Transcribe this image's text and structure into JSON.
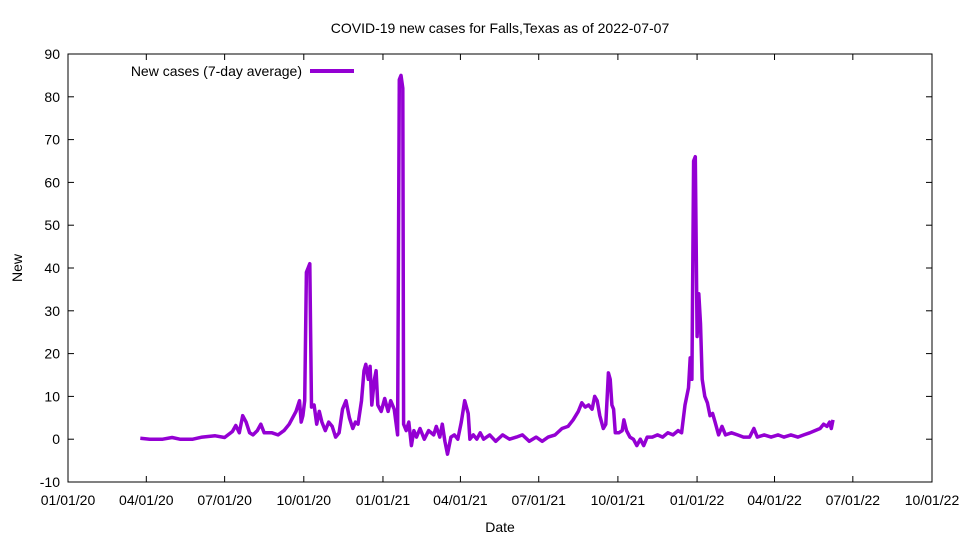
{
  "chart_data": {
    "type": "line",
    "title": "COVID-19 new cases for Falls,Texas as of 2022-07-07",
    "xlabel": "Date",
    "ylabel": "New",
    "x_start": "2020-01-01",
    "x_end": "2022-10-01",
    "ylim": [
      -10,
      90
    ],
    "yticks": [
      -10,
      0,
      10,
      20,
      30,
      40,
      50,
      60,
      70,
      80,
      90
    ],
    "xticks": [
      {
        "date": "2020-01-01",
        "label": "01/01/20"
      },
      {
        "date": "2020-04-01",
        "label": "04/01/20"
      },
      {
        "date": "2020-07-01",
        "label": "07/01/20"
      },
      {
        "date": "2020-10-01",
        "label": "10/01/20"
      },
      {
        "date": "2021-01-01",
        "label": "01/01/21"
      },
      {
        "date": "2021-04-01",
        "label": "04/01/21"
      },
      {
        "date": "2021-07-01",
        "label": "07/01/21"
      },
      {
        "date": "2021-10-01",
        "label": "10/01/21"
      },
      {
        "date": "2022-01-01",
        "label": "01/01/22"
      },
      {
        "date": "2022-04-01",
        "label": "04/01/22"
      },
      {
        "date": "2022-07-01",
        "label": "07/01/22"
      },
      {
        "date": "2022-10-01",
        "label": "10/01/22"
      }
    ],
    "legend_position": "top-left",
    "grid": false,
    "series": [
      {
        "name": "New cases (7-day average)",
        "color": "#9400d3",
        "points": [
          [
            "2020-03-25",
            0.2
          ],
          [
            "2020-04-05",
            0
          ],
          [
            "2020-04-20",
            0
          ],
          [
            "2020-05-01",
            0.4
          ],
          [
            "2020-05-10",
            0
          ],
          [
            "2020-05-25",
            0
          ],
          [
            "2020-06-05",
            0.5
          ],
          [
            "2020-06-20",
            0.8
          ],
          [
            "2020-07-01",
            0.4
          ],
          [
            "2020-07-10",
            1.8
          ],
          [
            "2020-07-14",
            3.2
          ],
          [
            "2020-07-18",
            1.5
          ],
          [
            "2020-07-22",
            5.5
          ],
          [
            "2020-07-26",
            4.0
          ],
          [
            "2020-07-30",
            1.5
          ],
          [
            "2020-08-03",
            1.0
          ],
          [
            "2020-08-08",
            2.0
          ],
          [
            "2020-08-12",
            3.5
          ],
          [
            "2020-08-16",
            1.5
          ],
          [
            "2020-08-25",
            1.5
          ],
          [
            "2020-09-01",
            1.0
          ],
          [
            "2020-09-08",
            2.0
          ],
          [
            "2020-09-14",
            3.5
          ],
          [
            "2020-09-18",
            5.0
          ],
          [
            "2020-09-22",
            6.5
          ],
          [
            "2020-09-26",
            9.0
          ],
          [
            "2020-09-28",
            4.0
          ],
          [
            "2020-09-30",
            5.5
          ],
          [
            "2020-10-02",
            9.0
          ],
          [
            "2020-10-04",
            39.0
          ],
          [
            "2020-10-06",
            40.0
          ],
          [
            "2020-10-08",
            41.0
          ],
          [
            "2020-10-10",
            7.5
          ],
          [
            "2020-10-13",
            8.0
          ],
          [
            "2020-10-16",
            3.5
          ],
          [
            "2020-10-19",
            6.5
          ],
          [
            "2020-10-22",
            4.0
          ],
          [
            "2020-10-26",
            2.0
          ],
          [
            "2020-10-30",
            4.0
          ],
          [
            "2020-11-03",
            3.0
          ],
          [
            "2020-11-07",
            0.5
          ],
          [
            "2020-11-11",
            1.5
          ],
          [
            "2020-11-15",
            7.0
          ],
          [
            "2020-11-19",
            9.0
          ],
          [
            "2020-11-23",
            5.0
          ],
          [
            "2020-11-27",
            2.5
          ],
          [
            "2020-11-30",
            4.0
          ],
          [
            "2020-12-03",
            3.5
          ],
          [
            "2020-12-07",
            9.0
          ],
          [
            "2020-12-10",
            16.0
          ],
          [
            "2020-12-12",
            17.5
          ],
          [
            "2020-12-15",
            14.0
          ],
          [
            "2020-12-17",
            17.0
          ],
          [
            "2020-12-19",
            8.0
          ],
          [
            "2020-12-22",
            14.0
          ],
          [
            "2020-12-24",
            16.0
          ],
          [
            "2020-12-26",
            8.0
          ],
          [
            "2020-12-30",
            6.5
          ],
          [
            "2021-01-03",
            9.5
          ],
          [
            "2021-01-07",
            6.5
          ],
          [
            "2021-01-10",
            9.0
          ],
          [
            "2021-01-14",
            7.0
          ],
          [
            "2021-01-18",
            1.0
          ],
          [
            "2021-01-20",
            84.0
          ],
          [
            "2021-01-22",
            85.0
          ],
          [
            "2021-01-24",
            82.0
          ],
          [
            "2021-01-25",
            3.5
          ],
          [
            "2021-01-28",
            2.0
          ],
          [
            "2021-01-31",
            4.0
          ],
          [
            "2021-02-03",
            -1.5
          ],
          [
            "2021-02-06",
            2.0
          ],
          [
            "2021-02-09",
            0.5
          ],
          [
            "2021-02-13",
            2.5
          ],
          [
            "2021-02-18",
            0.0
          ],
          [
            "2021-02-23",
            2.0
          ],
          [
            "2021-03-01",
            1.0
          ],
          [
            "2021-03-04",
            3.0
          ],
          [
            "2021-03-08",
            0.5
          ],
          [
            "2021-03-11",
            3.5
          ],
          [
            "2021-03-14",
            -0.5
          ],
          [
            "2021-03-17",
            -3.5
          ],
          [
            "2021-03-21",
            0.5
          ],
          [
            "2021-03-25",
            1.0
          ],
          [
            "2021-03-29",
            0.0
          ],
          [
            "2021-04-02",
            4.0
          ],
          [
            "2021-04-06",
            9.0
          ],
          [
            "2021-04-10",
            6.0
          ],
          [
            "2021-04-12",
            0.0
          ],
          [
            "2021-04-16",
            1.0
          ],
          [
            "2021-04-20",
            0.0
          ],
          [
            "2021-04-24",
            1.5
          ],
          [
            "2021-04-28",
            0.0
          ],
          [
            "2021-05-05",
            1.0
          ],
          [
            "2021-05-12",
            -0.5
          ],
          [
            "2021-05-20",
            1.0
          ],
          [
            "2021-05-28",
            0.0
          ],
          [
            "2021-06-05",
            0.5
          ],
          [
            "2021-06-12",
            1.0
          ],
          [
            "2021-06-20",
            -0.5
          ],
          [
            "2021-06-28",
            0.5
          ],
          [
            "2021-07-05",
            -0.5
          ],
          [
            "2021-07-12",
            0.5
          ],
          [
            "2021-07-20",
            1.0
          ],
          [
            "2021-07-28",
            2.5
          ],
          [
            "2021-08-04",
            3.0
          ],
          [
            "2021-08-10",
            4.5
          ],
          [
            "2021-08-16",
            6.5
          ],
          [
            "2021-08-20",
            8.5
          ],
          [
            "2021-08-24",
            7.5
          ],
          [
            "2021-08-28",
            8.0
          ],
          [
            "2021-09-01",
            7.0
          ],
          [
            "2021-09-04",
            10.0
          ],
          [
            "2021-09-07",
            9.0
          ],
          [
            "2021-09-10",
            5.5
          ],
          [
            "2021-09-14",
            2.5
          ],
          [
            "2021-09-17",
            3.5
          ],
          [
            "2021-09-20",
            15.5
          ],
          [
            "2021-09-22",
            14.0
          ],
          [
            "2021-09-24",
            8.0
          ],
          [
            "2021-09-26",
            7.0
          ],
          [
            "2021-09-28",
            1.5
          ],
          [
            "2021-10-02",
            1.5
          ],
          [
            "2021-10-06",
            2.0
          ],
          [
            "2021-10-08",
            4.5
          ],
          [
            "2021-10-11",
            2.0
          ],
          [
            "2021-10-15",
            0.5
          ],
          [
            "2021-10-19",
            0.0
          ],
          [
            "2021-10-23",
            -1.5
          ],
          [
            "2021-10-27",
            0.0
          ],
          [
            "2021-10-31",
            -1.5
          ],
          [
            "2021-11-04",
            0.5
          ],
          [
            "2021-11-10",
            0.5
          ],
          [
            "2021-11-16",
            1.0
          ],
          [
            "2021-11-22",
            0.5
          ],
          [
            "2021-11-28",
            1.5
          ],
          [
            "2021-12-04",
            1.0
          ],
          [
            "2021-12-10",
            2.0
          ],
          [
            "2021-12-14",
            1.5
          ],
          [
            "2021-12-18",
            8.0
          ],
          [
            "2021-12-22",
            12.0
          ],
          [
            "2021-12-24",
            19.0
          ],
          [
            "2021-12-26",
            14.0
          ],
          [
            "2021-12-28",
            65.0
          ],
          [
            "2021-12-30",
            66.0
          ],
          [
            "2022-01-01",
            24.0
          ],
          [
            "2022-01-03",
            34.0
          ],
          [
            "2022-01-05",
            27.0
          ],
          [
            "2022-01-07",
            14.0
          ],
          [
            "2022-01-10",
            10.0
          ],
          [
            "2022-01-13",
            8.5
          ],
          [
            "2022-01-16",
            5.5
          ],
          [
            "2022-01-19",
            6.0
          ],
          [
            "2022-01-22",
            4.0
          ],
          [
            "2022-01-26",
            1.0
          ],
          [
            "2022-01-30",
            3.0
          ],
          [
            "2022-02-03",
            1.0
          ],
          [
            "2022-02-10",
            1.5
          ],
          [
            "2022-02-17",
            1.0
          ],
          [
            "2022-02-24",
            0.5
          ],
          [
            "2022-03-03",
            0.5
          ],
          [
            "2022-03-08",
            2.5
          ],
          [
            "2022-03-12",
            0.5
          ],
          [
            "2022-03-20",
            1.0
          ],
          [
            "2022-03-28",
            0.5
          ],
          [
            "2022-04-05",
            1.0
          ],
          [
            "2022-04-12",
            0.5
          ],
          [
            "2022-04-20",
            1.0
          ],
          [
            "2022-04-28",
            0.5
          ],
          [
            "2022-05-05",
            1.0
          ],
          [
            "2022-05-12",
            1.5
          ],
          [
            "2022-05-18",
            2.0
          ],
          [
            "2022-05-24",
            2.5
          ],
          [
            "2022-05-28",
            3.5
          ],
          [
            "2022-06-01",
            3.0
          ],
          [
            "2022-06-04",
            4.0
          ],
          [
            "2022-06-06",
            2.5
          ],
          [
            "2022-06-08",
            4.5
          ]
        ]
      }
    ]
  }
}
